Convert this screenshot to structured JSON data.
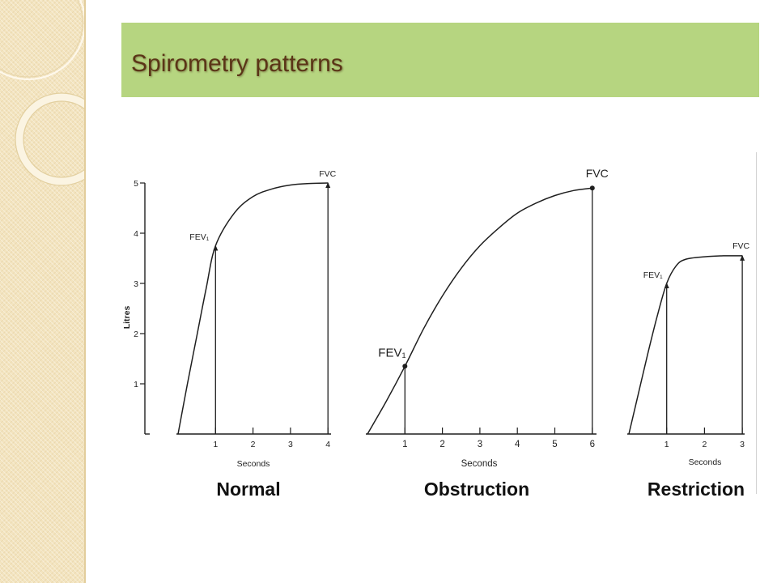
{
  "slide": {
    "title": "Spirometry patterns",
    "colors": {
      "title_bar": "#b6d580",
      "title_text": "#5b3517",
      "sidebar": "#f3e4bf",
      "ink": "#1f1f1f"
    }
  },
  "chart_data": [
    {
      "type": "line",
      "title": "Normal",
      "xlabel": "Seconds",
      "ylabel": "Litres",
      "xlim": [
        0,
        4
      ],
      "ylim": [
        0,
        5
      ],
      "xticks": [
        1,
        2,
        3,
        4
      ],
      "yticks": [
        1,
        2,
        3,
        4,
        5
      ],
      "grid": false,
      "series": [
        {
          "x": [
            0,
            0.25,
            0.5,
            0.75,
            1,
            1.5,
            2,
            2.5,
            3,
            3.5,
            4
          ],
          "y": [
            0,
            1.0,
            1.95,
            2.9,
            3.75,
            4.4,
            4.73,
            4.88,
            4.96,
            4.99,
            5.0
          ]
        }
      ],
      "annotations": [
        {
          "text": "FEV₁",
          "x": 1,
          "y": 3.75
        },
        {
          "text": "FVC",
          "x": 4,
          "y": 5.0
        }
      ]
    },
    {
      "type": "line",
      "title": "Obstruction",
      "xlabel": "Seconds",
      "xlim": [
        0,
        6
      ],
      "xticks": [
        1,
        2,
        3,
        4,
        5,
        6
      ],
      "grid": false,
      "series": [
        {
          "x": [
            0,
            0.5,
            1,
            1.5,
            2,
            2.5,
            3,
            3.5,
            4,
            4.5,
            5,
            5.5,
            6
          ],
          "y": [
            0,
            0.65,
            1.35,
            2.1,
            2.75,
            3.3,
            3.75,
            4.1,
            4.4,
            4.6,
            4.75,
            4.85,
            4.9
          ]
        }
      ],
      "annotations": [
        {
          "text": "FEV₁",
          "x": 1,
          "y": 1.35
        },
        {
          "text": "FVC",
          "x": 6,
          "y": 4.9
        }
      ]
    },
    {
      "type": "line",
      "title": "Restriction",
      "xlabel": "Seconds",
      "xlim": [
        0,
        3
      ],
      "xticks": [
        1,
        2,
        3
      ],
      "grid": false,
      "series": [
        {
          "x": [
            0,
            0.25,
            0.5,
            0.75,
            1,
            1.25,
            1.5,
            2,
            2.5,
            3
          ],
          "y": [
            0,
            0.8,
            1.6,
            2.35,
            3.0,
            3.35,
            3.48,
            3.53,
            3.55,
            3.55
          ]
        }
      ],
      "annotations": [
        {
          "text": "FEV₁",
          "x": 1,
          "y": 3.0
        },
        {
          "text": "FVC",
          "x": 3,
          "y": 3.55
        }
      ]
    }
  ]
}
